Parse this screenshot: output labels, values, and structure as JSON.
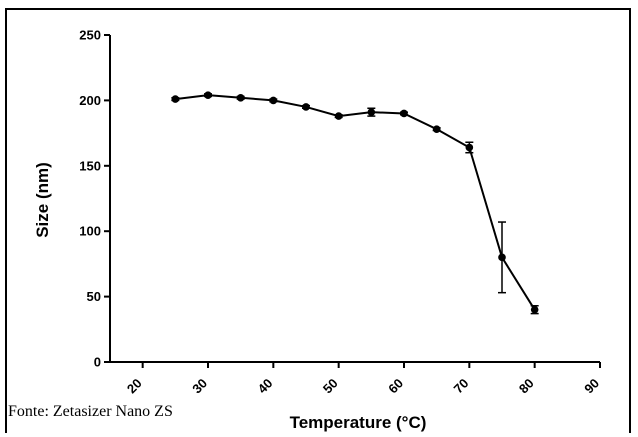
{
  "chart_data": {
    "type": "line",
    "title": "",
    "xlabel": "Temperature (°C)",
    "ylabel": "Size (nm)",
    "xlim": [
      15,
      90
    ],
    "ylim": [
      0,
      250
    ],
    "x_ticks": [
      20,
      30,
      40,
      50,
      60,
      70,
      80,
      90
    ],
    "y_ticks": [
      0,
      50,
      100,
      150,
      200,
      250
    ],
    "grid": false,
    "legend": "none",
    "series": [
      {
        "x": [
          25,
          30,
          35,
          40,
          45,
          50,
          55,
          60,
          65,
          70,
          75,
          80
        ],
        "y": [
          201,
          204,
          202,
          200,
          195,
          188,
          191,
          190,
          178,
          164,
          80,
          40
        ],
        "error": [
          1,
          1,
          1,
          1,
          1,
          1,
          3,
          1,
          1,
          4,
          27,
          3
        ]
      }
    ]
  },
  "source_note": "Fonte: Zetasizer Nano ZS",
  "colors": {
    "line": "#000000",
    "background": "#ffffff"
  }
}
